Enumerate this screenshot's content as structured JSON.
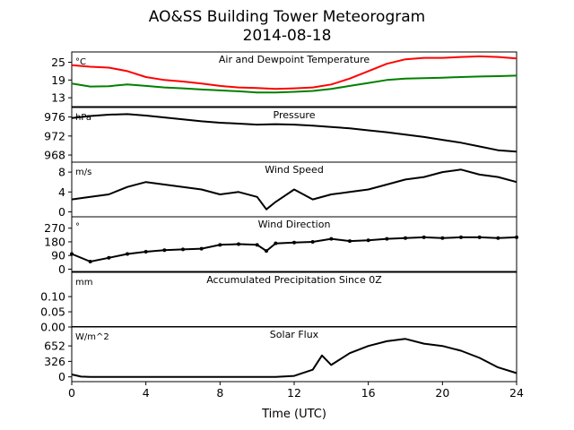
{
  "figure": {
    "title_line1": "AO&SS Building Tower Meteorogram",
    "title_line2": "2014-08-18",
    "xlabel": "Time (UTC)",
    "xticks": [
      "0",
      "4",
      "8",
      "12",
      "16",
      "20",
      "24"
    ]
  },
  "chart_data": [
    {
      "type": "line",
      "title": "Air and Dewpoint Temperature",
      "unit": "°C",
      "yticks": [
        "13",
        "19",
        "25"
      ],
      "ylim": [
        10,
        28.5
      ],
      "x": [
        0,
        1,
        2,
        3,
        4,
        5,
        6,
        7,
        8,
        9,
        10,
        11,
        12,
        13,
        14,
        15,
        16,
        17,
        18,
        19,
        20,
        21,
        22,
        23,
        24
      ],
      "series": [
        {
          "color": "#ff0000",
          "values": [
            24.0,
            23.5,
            23.2,
            22.0,
            20.0,
            19.0,
            18.5,
            17.8,
            17.0,
            16.5,
            16.3,
            16.0,
            16.2,
            16.5,
            17.5,
            19.5,
            22.0,
            24.5,
            26.0,
            26.5,
            26.5,
            26.8,
            27.0,
            26.8,
            26.3
          ]
        },
        {
          "color": "#008000",
          "values": [
            17.8,
            16.8,
            16.9,
            17.5,
            17.0,
            16.5,
            16.2,
            15.8,
            15.5,
            15.2,
            14.8,
            14.8,
            15.0,
            15.3,
            16.0,
            17.0,
            18.0,
            19.0,
            19.5,
            19.6,
            19.8,
            20.0,
            20.2,
            20.3,
            20.5
          ]
        }
      ]
    },
    {
      "type": "line",
      "title": "Pressure",
      "unit": "hPa",
      "yticks": [
        "968",
        "972",
        "976"
      ],
      "ylim": [
        966.5,
        978
      ],
      "x": [
        0,
        1,
        2,
        3,
        4,
        5,
        6,
        7,
        8,
        9,
        10,
        11,
        12,
        13,
        14,
        15,
        16,
        17,
        18,
        19,
        20,
        21,
        22,
        23,
        24
      ],
      "series": [
        {
          "color": "#000000",
          "values": [
            975.8,
            976.2,
            976.5,
            976.6,
            976.3,
            975.9,
            975.5,
            975.1,
            974.8,
            974.6,
            974.4,
            974.5,
            974.4,
            974.2,
            973.9,
            973.6,
            973.2,
            972.8,
            972.3,
            971.8,
            971.2,
            970.6,
            969.8,
            969.0,
            968.7
          ]
        }
      ]
    },
    {
      "type": "line",
      "title": "Wind Speed",
      "unit": "m/s",
      "yticks": [
        "0",
        "4",
        "8"
      ],
      "ylim": [
        -1,
        10
      ],
      "x": [
        0,
        1,
        2,
        3,
        4,
        5,
        6,
        7,
        8,
        9,
        10,
        10.5,
        11,
        12,
        13,
        14,
        15,
        16,
        17,
        18,
        19,
        20,
        21,
        22,
        23,
        24
      ],
      "series": [
        {
          "color": "#000000",
          "values": [
            2.5,
            3.0,
            3.5,
            5.0,
            6.0,
            5.5,
            5.0,
            4.5,
            3.5,
            4.0,
            3.0,
            0.5,
            2.0,
            4.5,
            2.5,
            3.5,
            4.0,
            4.5,
            5.5,
            6.5,
            7.0,
            8.0,
            8.5,
            7.5,
            7.0,
            6.0
          ]
        }
      ]
    },
    {
      "type": "scatter",
      "title": "Wind Direction",
      "unit": "°",
      "yticks": [
        "0",
        "90",
        "180",
        "270"
      ],
      "ylim": [
        -15,
        345
      ],
      "x": [
        0,
        1,
        2,
        3,
        4,
        5,
        6,
        7,
        8,
        9,
        10,
        10.5,
        11,
        12,
        13,
        14,
        15,
        16,
        17,
        18,
        19,
        20,
        21,
        22,
        23,
        24
      ],
      "series": [
        {
          "color": "#000000",
          "values": [
            100,
            50,
            75,
            100,
            115,
            125,
            130,
            135,
            160,
            165,
            160,
            120,
            170,
            175,
            180,
            200,
            185,
            190,
            200,
            205,
            210,
            205,
            210,
            210,
            205,
            210
          ]
        }
      ]
    },
    {
      "type": "line",
      "title": "Accumulated Precipitation Since 0Z",
      "unit": "mm",
      "yticks": [
        "0.00",
        "0.05",
        "0.10"
      ],
      "ylim": [
        0,
        0.18
      ],
      "x": [
        0,
        24
      ],
      "series": [
        {
          "color": "#000000",
          "values": [
            0,
            0
          ]
        }
      ]
    },
    {
      "type": "line",
      "title": "Solar Flux",
      "unit": "W/m^2",
      "yticks": [
        "0",
        "326",
        "652"
      ],
      "ylim": [
        -100,
        1050
      ],
      "x": [
        0,
        0.5,
        1,
        2,
        4,
        6,
        8,
        10,
        11,
        12,
        13,
        13.5,
        14,
        15,
        16,
        17,
        18,
        19,
        20,
        21,
        22,
        23,
        24
      ],
      "series": [
        {
          "color": "#000000",
          "values": [
            50,
            5,
            0,
            0,
            0,
            0,
            0,
            0,
            0,
            20,
            150,
            450,
            250,
            500,
            650,
            750,
            800,
            700,
            650,
            550,
            400,
            200,
            80
          ]
        }
      ]
    }
  ]
}
